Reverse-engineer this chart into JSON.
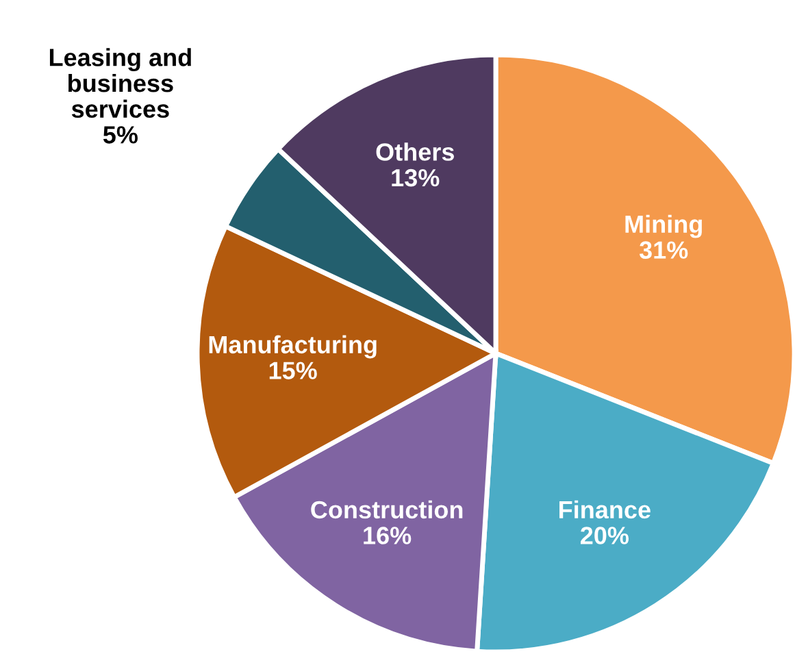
{
  "chart_data": {
    "type": "pie",
    "categories": [
      "Mining",
      "Finance",
      "Construction",
      "Manufacturing",
      "Leasing and\nbusiness\nservices",
      "Others"
    ],
    "values": [
      31,
      20,
      16,
      15,
      5,
      13
    ],
    "value_labels": [
      "31%",
      "20%",
      "16%",
      "15%",
      "5%",
      "13%"
    ],
    "colors": [
      "#f4994b",
      "#4bacc6",
      "#8064a2",
      "#b35a0e",
      "#235f6e",
      "#4f3a60"
    ],
    "legend": false
  }
}
